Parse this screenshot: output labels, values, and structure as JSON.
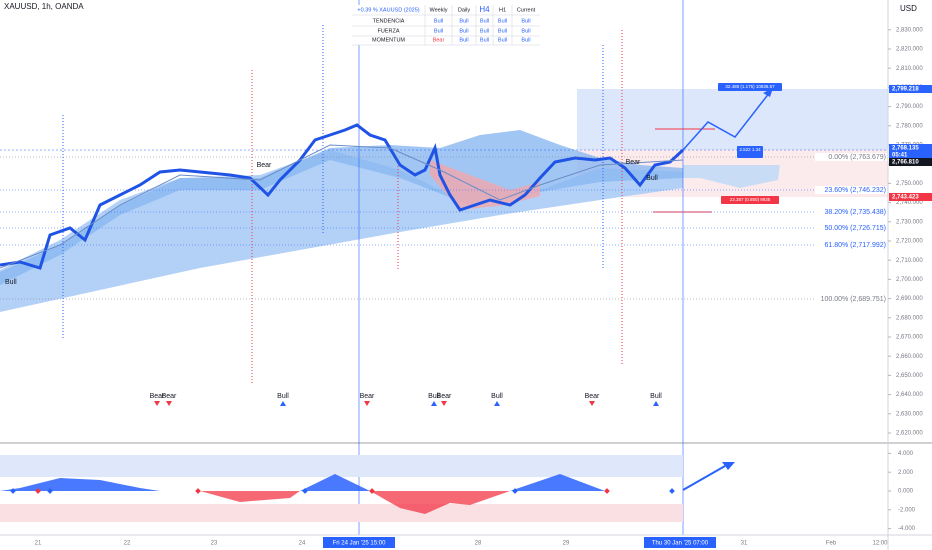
{
  "header": {
    "symbol": "XAUUSD, 1h, OANDA",
    "currency": "USD"
  },
  "table": {
    "header": [
      "+0.39 % XAUUSD (2025)",
      "Weekly",
      "Daily",
      "H4",
      "H1",
      "Current"
    ],
    "rows": [
      [
        "TENDENCIA",
        "Bull",
        "Bull",
        "Bull",
        "Bull",
        "Bull"
      ],
      [
        "FUERZA",
        "Bull",
        "Bull",
        "Bull",
        "Bull",
        "Bull"
      ],
      [
        "MOMENTUM",
        "Bear",
        "Bull",
        "Bull",
        "Bull",
        "Bull"
      ]
    ]
  },
  "price_axis": {
    "ticks": [
      {
        "value": 2620,
        "label": "2,620.000"
      },
      {
        "value": 2630,
        "label": "2,630.000"
      },
      {
        "value": 2640,
        "label": "2,640.000"
      },
      {
        "value": 2650,
        "label": "2,650.000"
      },
      {
        "value": 2660,
        "label": "2,660.000"
      },
      {
        "value": 2670,
        "label": "2,670.000"
      },
      {
        "value": 2680,
        "label": "2,680.000"
      },
      {
        "value": 2690,
        "label": "2,690.000"
      },
      {
        "value": 2700,
        "label": "2,700.000"
      },
      {
        "value": 2710,
        "label": "2,710.000"
      },
      {
        "value": 2720,
        "label": "2,720.000"
      },
      {
        "value": 2730,
        "label": "2,730.000"
      },
      {
        "value": 2740,
        "label": "2,740.000"
      },
      {
        "value": 2750,
        "label": "2,750.000"
      },
      {
        "value": 2760,
        "label": "2,760.000"
      },
      {
        "value": 2770,
        "label": "2,770.000"
      },
      {
        "value": 2780,
        "label": "2,780.000"
      },
      {
        "value": 2790,
        "label": "2,790.000"
      },
      {
        "value": 2800,
        "label": "2,800.000"
      },
      {
        "value": 2810,
        "label": "2,810.000"
      },
      {
        "value": 2820,
        "label": "2,820.000"
      },
      {
        "value": 2830,
        "label": "2,830.000"
      }
    ]
  },
  "price_labels": [
    {
      "text": "2,799.218",
      "kind": "blue"
    },
    {
      "text": "2,768.135",
      "kind": "blue"
    },
    {
      "text": "05:41",
      "kind": "blue-sub"
    },
    {
      "text": "2,766.810",
      "kind": "dark"
    },
    {
      "text": "2,743.423",
      "kind": "red"
    }
  ],
  "oscillator_axis": {
    "ticks": [
      {
        "value": 4,
        "label": "4.000"
      },
      {
        "value": 2,
        "label": "2.000"
      },
      {
        "value": 0,
        "label": "0.000"
      },
      {
        "value": -2,
        "label": "-2.000"
      },
      {
        "value": -4,
        "label": "-4.000"
      }
    ]
  },
  "time_axis": [
    "21",
    "22",
    "23",
    "24",
    "Fri 24 Jan '25  15:00",
    "28",
    "29",
    "Thu 30 Jan '25  07:00",
    "31",
    "Feb",
    "12:00"
  ],
  "fib_levels": [
    "0.00% (2,763.679)",
    "23.60% (2,746.232)",
    "38.20% (2,735.438)",
    "50.00% (2,726.715)",
    "61.80% (2,717.992)",
    "100.00% (2,689.751)"
  ],
  "position_labels": [
    "32.488 (1.175) 10836.57",
    "2.522  1.34",
    "23.387 (0.850) 9935"
  ],
  "chart_labels": [
    "Bear",
    "Bear",
    "Bull",
    "Bull"
  ],
  "signals": [
    "Bear",
    "Bear",
    "Bull",
    "Bear",
    "Bull",
    "Bear",
    "Bull",
    "Bear",
    "Bull"
  ]
}
